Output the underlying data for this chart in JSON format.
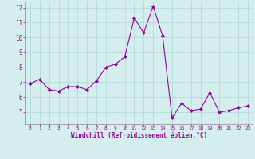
{
  "x": [
    0,
    1,
    2,
    3,
    4,
    5,
    6,
    7,
    8,
    9,
    10,
    11,
    12,
    13,
    14,
    15,
    16,
    17,
    18,
    19,
    20,
    21,
    22,
    23
  ],
  "y": [
    6.9,
    7.2,
    6.5,
    6.4,
    6.7,
    6.7,
    6.5,
    7.1,
    8.0,
    8.2,
    8.7,
    11.3,
    10.3,
    12.1,
    10.1,
    4.6,
    5.6,
    5.1,
    5.2,
    6.3,
    5.0,
    5.1,
    5.3,
    5.4
  ],
  "line_color": "#990099",
  "marker": "D",
  "marker_size": 2,
  "bg_color": "#d4eeee",
  "grid_color": "#b0d8d8",
  "xlabel": "Windchill (Refroidissement éolien,°C)",
  "xlabel_color": "#990099",
  "tick_color": "#990099",
  "spine_color": "#888888",
  "ylim": [
    4.2,
    12.4
  ],
  "xlim": [
    -0.5,
    23.5
  ],
  "yticks": [
    5,
    6,
    7,
    8,
    9,
    10,
    11,
    12
  ],
  "xticks": [
    0,
    1,
    2,
    3,
    4,
    5,
    6,
    7,
    8,
    9,
    10,
    11,
    12,
    13,
    14,
    15,
    16,
    17,
    18,
    19,
    20,
    21,
    22,
    23
  ],
  "figsize": [
    3.2,
    2.0
  ],
  "dpi": 100
}
